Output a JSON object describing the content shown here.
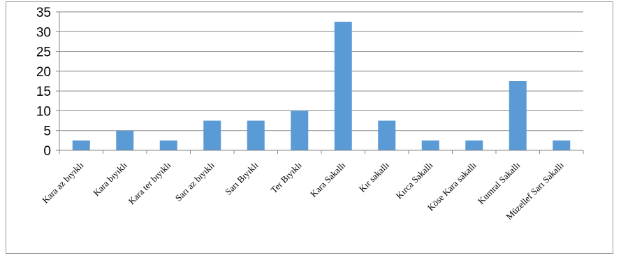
{
  "chart_data": {
    "type": "bar",
    "title": "",
    "xlabel": "",
    "ylabel": "",
    "categories": [
      "Kara az bıyıklı",
      "Kara bıyıklı",
      "Kara ter bıyıklı",
      "Sarı az bıyıklı",
      "Sarı Bıyıklı",
      "Ter Bıyıklı",
      "Kara Sakallı",
      "Kır sakallı",
      "Kırca Sakallı",
      "Köse Kara sakallı",
      "Kumral Sakallı",
      "Müzellef Sarı Sakallı"
    ],
    "values": [
      2.5,
      5,
      2.5,
      7.5,
      7.5,
      10,
      32.5,
      7.5,
      2.5,
      2.5,
      17.5,
      2.5
    ],
    "ylim": [
      0,
      35
    ],
    "yticks": [
      0,
      5,
      10,
      15,
      20,
      25,
      30,
      35
    ],
    "grid": true,
    "legend": "none",
    "bar_color": "#5b9bd5",
    "grid_color": "#868686"
  }
}
